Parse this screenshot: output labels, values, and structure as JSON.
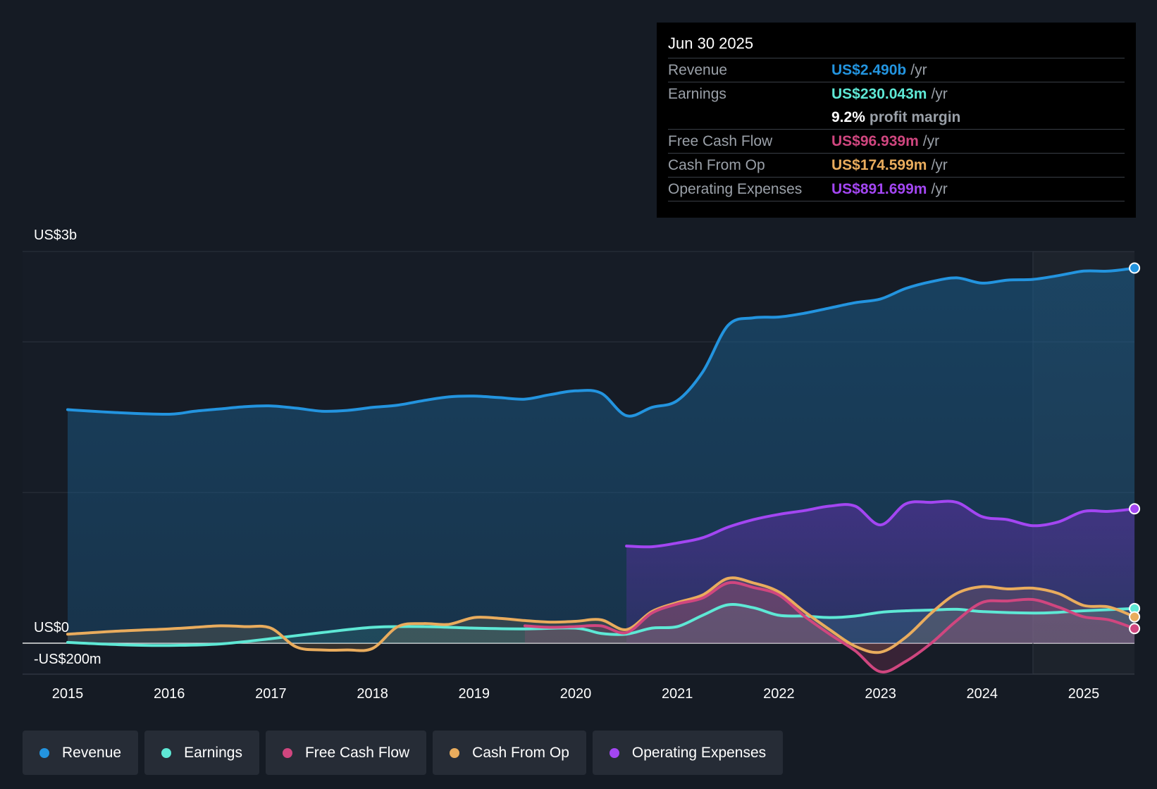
{
  "colors": {
    "revenue": "#2394df",
    "earnings": "#5ee8d5",
    "fcf": "#d0467f",
    "cfo": "#e9ac5d",
    "opex": "#a346f2",
    "background": "#151b24"
  },
  "tooltip": {
    "date": "Jun 30 2025",
    "rows": [
      {
        "label": "Revenue",
        "value": "US$2.490b",
        "unit": "/yr"
      },
      {
        "label": "Earnings",
        "value": "US$230.043m",
        "unit": "/yr"
      },
      {
        "label": "Free Cash Flow",
        "value": "US$96.939m",
        "unit": "/yr"
      },
      {
        "label": "Cash From Op",
        "value": "US$174.599m",
        "unit": "/yr"
      },
      {
        "label": "Operating Expenses",
        "value": "US$891.699m",
        "unit": "/yr"
      }
    ],
    "margin_value": "9.2%",
    "margin_label": "profit margin"
  },
  "legend": [
    {
      "label": "Revenue",
      "key": "revenue"
    },
    {
      "label": "Earnings",
      "key": "earnings"
    },
    {
      "label": "Free Cash Flow",
      "key": "fcf"
    },
    {
      "label": "Cash From Op",
      "key": "cfo"
    },
    {
      "label": "Operating Expenses",
      "key": "opex"
    }
  ],
  "chart_data": {
    "type": "area",
    "title": "",
    "xlabel": "",
    "ylabel": "",
    "xlim": [
      2015,
      2025.5
    ],
    "ylim": [
      -200,
      2600
    ],
    "y_tick_labels": [
      {
        "value": 2600,
        "label": "US$3b"
      },
      {
        "value": 0,
        "label": "US$0"
      },
      {
        "value": -200,
        "label": "-US$200m"
      }
    ],
    "x_ticks": [
      2015,
      2016,
      2017,
      2018,
      2019,
      2020,
      2021,
      2022,
      2023,
      2024,
      2025
    ],
    "x_tick_labels": [
      "2015",
      "2016",
      "2017",
      "2018",
      "2019",
      "2020",
      "2021",
      "2022",
      "2023",
      "2024",
      "2025"
    ],
    "gridlines": [
      2600,
      2000,
      1000,
      0
    ],
    "forecast_shade_start": 2024.5,
    "series": [
      {
        "name": "Revenue",
        "key": "revenue",
        "x": [
          2015,
          2015.5,
          2016,
          2016.25,
          2016.5,
          2016.75,
          2017,
          2017.25,
          2017.5,
          2017.75,
          2018,
          2018.25,
          2018.5,
          2018.75,
          2019,
          2019.25,
          2019.5,
          2019.75,
          2020,
          2020.25,
          2020.5,
          2020.75,
          2021,
          2021.25,
          2021.5,
          2021.75,
          2022,
          2022.25,
          2022.5,
          2022.75,
          2023,
          2023.25,
          2023.5,
          2023.75,
          2024,
          2024.25,
          2024.5,
          2024.75,
          2025,
          2025.25,
          2025.5
        ],
        "values": [
          1550,
          1530,
          1520,
          1540,
          1555,
          1570,
          1575,
          1560,
          1540,
          1545,
          1565,
          1580,
          1610,
          1635,
          1640,
          1630,
          1620,
          1650,
          1675,
          1660,
          1510,
          1565,
          1610,
          1800,
          2110,
          2160,
          2165,
          2190,
          2225,
          2260,
          2285,
          2355,
          2400,
          2425,
          2390,
          2410,
          2415,
          2440,
          2470,
          2470,
          2490
        ]
      },
      {
        "name": "Earnings",
        "key": "earnings",
        "x": [
          2015,
          2015.5,
          2016,
          2016.5,
          2017,
          2017.5,
          2018,
          2018.5,
          2019,
          2019.5,
          2020,
          2020.25,
          2020.5,
          2020.75,
          2021,
          2021.25,
          2021.5,
          2021.75,
          2022,
          2022.25,
          2022.5,
          2022.75,
          2023,
          2023.25,
          2023.5,
          2023.75,
          2024,
          2024.5,
          2024.75,
          2025,
          2025.5
        ],
        "values": [
          5,
          -10,
          -15,
          -5,
          30,
          70,
          105,
          110,
          100,
          95,
          100,
          65,
          60,
          100,
          110,
          185,
          255,
          235,
          185,
          180,
          170,
          180,
          205,
          215,
          220,
          225,
          210,
          200,
          205,
          215,
          230
        ]
      },
      {
        "name": "Free Cash Flow",
        "key": "fcf",
        "x": [
          2019.5,
          2019.75,
          2020,
          2020.25,
          2020.5,
          2020.75,
          2021,
          2021.25,
          2021.5,
          2021.75,
          2022,
          2022.25,
          2022.5,
          2022.75,
          2023,
          2023.25,
          2023.5,
          2023.75,
          2024,
          2024.25,
          2024.5,
          2024.75,
          2025,
          2025.25,
          2025.5
        ],
        "values": [
          115,
          105,
          110,
          115,
          70,
          200,
          260,
          300,
          400,
          370,
          320,
          180,
          60,
          -50,
          -190,
          -120,
          0,
          150,
          270,
          280,
          290,
          240,
          175,
          155,
          97
        ]
      },
      {
        "name": "Cash From Op",
        "key": "cfo",
        "x": [
          2015,
          2015.5,
          2016,
          2016.25,
          2016.5,
          2016.75,
          2017,
          2017.25,
          2017.5,
          2017.75,
          2018,
          2018.25,
          2018.5,
          2018.75,
          2019,
          2019.25,
          2019.5,
          2019.75,
          2020,
          2020.25,
          2020.5,
          2020.75,
          2021,
          2021.25,
          2021.5,
          2021.75,
          2022,
          2022.25,
          2022.5,
          2022.75,
          2023,
          2023.25,
          2023.5,
          2023.75,
          2024,
          2024.25,
          2024.5,
          2024.75,
          2025,
          2025.25,
          2025.5
        ],
        "values": [
          60,
          80,
          95,
          105,
          115,
          110,
          100,
          -25,
          -45,
          -45,
          -35,
          110,
          130,
          125,
          170,
          165,
          150,
          140,
          145,
          155,
          90,
          210,
          270,
          320,
          430,
          400,
          340,
          210,
          90,
          -20,
          -60,
          40,
          200,
          330,
          375,
          360,
          365,
          330,
          250,
          240,
          175
        ]
      },
      {
        "name": "Operating Expenses",
        "key": "opex",
        "x": [
          2020.5,
          2020.75,
          2021,
          2021.25,
          2021.5,
          2021.75,
          2022,
          2022.25,
          2022.5,
          2022.75,
          2023,
          2023.25,
          2023.5,
          2023.75,
          2024,
          2024.25,
          2024.5,
          2024.75,
          2025,
          2025.25,
          2025.5
        ],
        "values": [
          645,
          640,
          665,
          700,
          770,
          820,
          855,
          880,
          910,
          910,
          785,
          925,
          935,
          935,
          840,
          820,
          780,
          805,
          875,
          875,
          892
        ]
      }
    ]
  }
}
